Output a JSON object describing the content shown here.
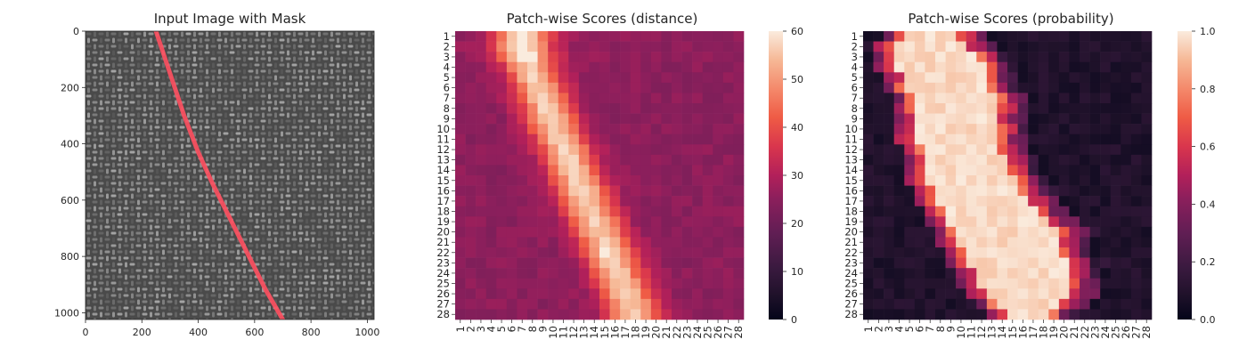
{
  "chart_data": [
    {
      "type": "image",
      "title": "Input Image with Mask",
      "xlim": [
        0,
        1024
      ],
      "ylim": [
        1024,
        0
      ],
      "x_ticks": [
        0,
        200,
        400,
        600,
        800,
        1000
      ],
      "y_ticks": [
        0,
        200,
        400,
        600,
        800,
        1000
      ],
      "mask_color": "#ff5060",
      "mask_polyline": [
        [
          250,
          0
        ],
        [
          300,
          150
        ],
        [
          350,
          300
        ],
        [
          400,
          430
        ],
        [
          450,
          540
        ],
        [
          510,
          660
        ],
        [
          580,
          800
        ],
        [
          640,
          920
        ],
        [
          700,
          1024
        ]
      ]
    },
    {
      "type": "heatmap",
      "title": "Patch-wise Scores (distance)",
      "x_labels": [
        "1",
        "2",
        "3",
        "4",
        "5",
        "6",
        "7",
        "8",
        "9",
        "10",
        "11",
        "12",
        "13",
        "14",
        "15",
        "16",
        "17",
        "18",
        "19",
        "20",
        "21",
        "22",
        "23",
        "24",
        "25",
        "26",
        "27",
        "28"
      ],
      "y_labels": [
        "1",
        "2",
        "3",
        "4",
        "5",
        "6",
        "7",
        "8",
        "9",
        "10",
        "11",
        "12",
        "13",
        "14",
        "15",
        "16",
        "17",
        "18",
        "19",
        "20",
        "21",
        "22",
        "23",
        "24",
        "25",
        "26",
        "27",
        "28"
      ],
      "colorbar": {
        "min": 0,
        "max": 60,
        "ticks": [
          0,
          10,
          20,
          30,
          40,
          50,
          60
        ]
      },
      "band_centers": [
        7.0,
        7.0,
        7.3,
        7.7,
        8.2,
        8.6,
        9.0,
        9.4,
        9.8,
        10.2,
        10.7,
        11.2,
        11.6,
        12.0,
        12.4,
        12.8,
        13.2,
        13.6,
        14.1,
        14.5,
        15.0,
        15.4,
        15.8,
        16.2,
        16.7,
        17.1,
        17.5,
        17.8
      ],
      "band_halfwidth": 1.8,
      "band_peak": 57,
      "background": 25,
      "peak_cell": {
        "row": 22,
        "col": 15,
        "value": 60
      }
    },
    {
      "type": "heatmap",
      "title": "Patch-wise Scores (probability)",
      "x_labels": [
        "1",
        "2",
        "3",
        "4",
        "5",
        "6",
        "7",
        "8",
        "9",
        "10",
        "11",
        "12",
        "13",
        "14",
        "15",
        "16",
        "17",
        "18",
        "19",
        "20",
        "21",
        "22",
        "23",
        "24",
        "25",
        "26",
        "27",
        "28"
      ],
      "y_labels": [
        "1",
        "2",
        "3",
        "4",
        "5",
        "6",
        "7",
        "8",
        "9",
        "10",
        "11",
        "12",
        "13",
        "14",
        "15",
        "16",
        "17",
        "18",
        "19",
        "20",
        "21",
        "22",
        "23",
        "24",
        "25",
        "26",
        "27",
        "28"
      ],
      "colorbar": {
        "min": 0.0,
        "max": 1.0,
        "ticks": [
          "0.0",
          "0.2",
          "0.4",
          "0.6",
          "0.8",
          "1.0"
        ]
      },
      "bright_left": [
        5,
        4,
        4,
        4,
        5,
        5,
        6,
        6,
        6,
        6,
        6,
        7,
        7,
        7,
        7,
        8,
        8,
        9,
        9,
        10,
        10,
        11,
        11,
        12,
        12,
        13,
        14,
        15
      ],
      "bright_right": [
        9,
        10,
        11,
        12,
        12,
        12,
        13,
        13,
        13,
        13,
        13,
        13,
        14,
        14,
        15,
        15,
        16,
        17,
        18,
        19,
        19,
        19,
        20,
        20,
        20,
        20,
        19,
        18
      ],
      "halo_right_extent": 4,
      "background": 0.05
    }
  ]
}
